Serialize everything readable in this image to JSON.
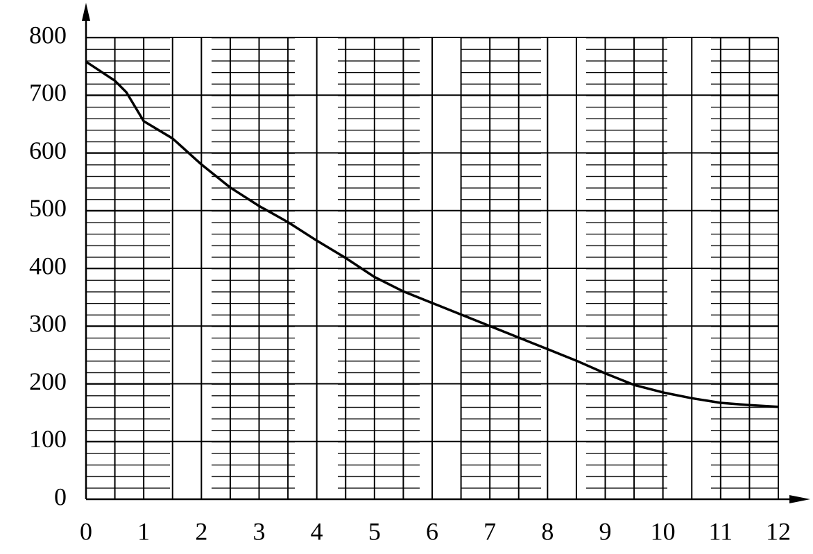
{
  "chart_data": {
    "type": "line",
    "x": [
      0,
      0.5,
      0.7,
      1,
      1.5,
      2,
      2.5,
      3,
      3.5,
      4,
      4.5,
      5,
      5.5,
      6,
      6.5,
      7,
      7.5,
      8,
      8.5,
      9,
      9.5,
      10,
      10.5,
      11,
      11.5,
      12
    ],
    "series": [
      {
        "color": "#000000",
        "values": [
          758,
          725,
          705,
          655,
          625,
          580,
          540,
          508,
          480,
          448,
          418,
          385,
          360,
          340,
          320,
          300,
          280,
          260,
          240,
          218,
          198,
          185,
          175,
          167,
          163,
          160
        ]
      }
    ],
    "xlim": [
      0,
      12
    ],
    "ylim": [
      0,
      800
    ],
    "xticks": [
      0,
      1,
      2,
      3,
      4,
      5,
      6,
      7,
      8,
      9,
      10,
      11,
      12
    ],
    "yticks": [
      0,
      100,
      200,
      300,
      400,
      500,
      600,
      700,
      800
    ],
    "xgrid": [
      0.5,
      1.5,
      2.5,
      3.5,
      4.5,
      5.5,
      6.5,
      7.5,
      8.5,
      9.5,
      10.5,
      11.5
    ],
    "grid": true
  }
}
